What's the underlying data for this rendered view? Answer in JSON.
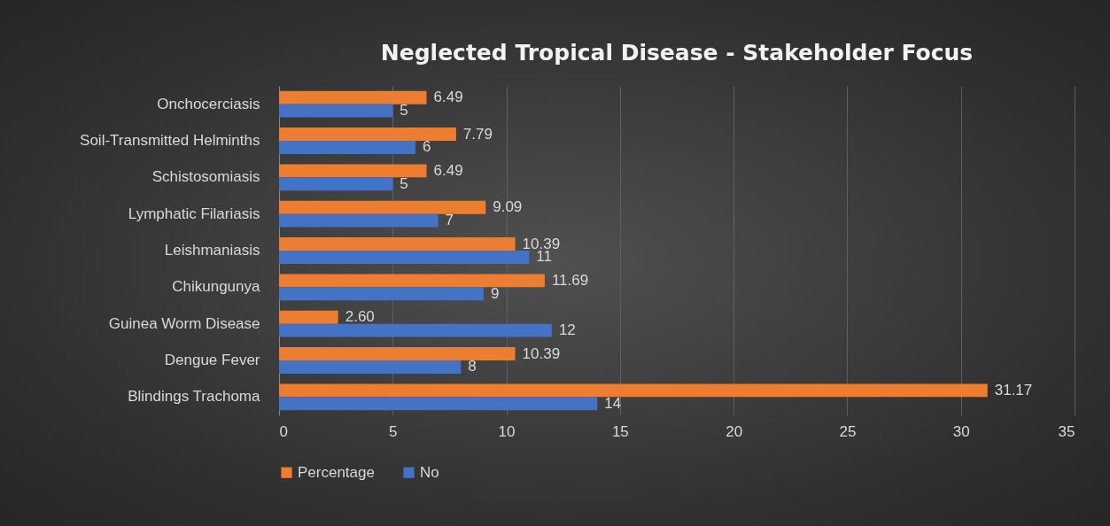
{
  "chart_data": {
    "type": "bar",
    "orientation": "horizontal",
    "title": "Neglected Tropical Disease - Stakeholder Focus",
    "categories": [
      "Onchocerciasis",
      "Soil-Transmitted Helminths",
      "Schistosomiasis",
      "Lymphatic Filariasis",
      "Leishmaniasis",
      "Chikungunya",
      "Guinea Worm Disease",
      "Dengue Fever",
      "Blindings Trachoma"
    ],
    "series": [
      {
        "name": "Percentage",
        "color": "#ed7d31",
        "values": [
          6.49,
          7.79,
          6.49,
          9.09,
          10.39,
          11.69,
          2.6,
          10.39,
          31.17
        ],
        "value_labels": [
          "6.49",
          "7.79",
          "6.49",
          "9.09",
          "10.39",
          "11.69",
          "2.60",
          "10.39",
          "31.17"
        ]
      },
      {
        "name": "No",
        "color": "#4472c4",
        "values": [
          5,
          6,
          5,
          7,
          11,
          9,
          12,
          8,
          14
        ],
        "value_labels": [
          "5",
          "6",
          "5",
          "7",
          "11",
          "9",
          "12",
          "8",
          "14"
        ]
      }
    ],
    "xlim": [
      0,
      35
    ],
    "xticks": [
      0,
      5,
      10,
      15,
      20,
      25,
      30,
      35
    ],
    "grid": "x",
    "legend": "bottom"
  }
}
